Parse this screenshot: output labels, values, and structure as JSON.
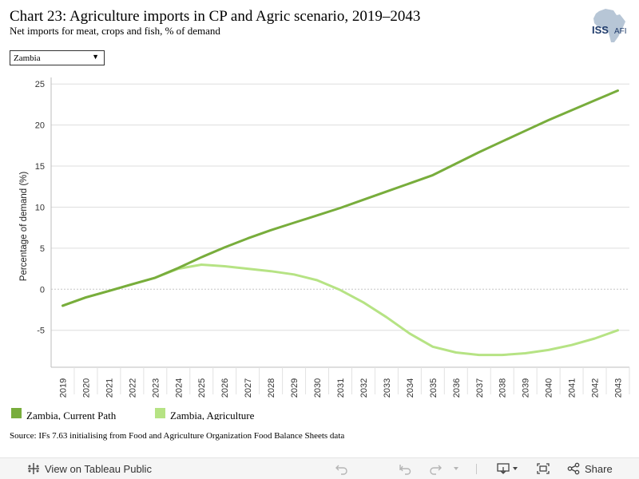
{
  "header": {
    "title": "Chart 23: Agriculture imports in CP and Agric scenario, 2019–2043",
    "subtitle": "Net imports for meat, crops and fish, % of demand"
  },
  "logo": {
    "text": "ISS",
    "suffix": "AFI",
    "icon": "africa-map-icon"
  },
  "filter": {
    "selected": "Zambia",
    "icon": "dropdown-arrow-icon"
  },
  "chart_data": {
    "type": "line",
    "ylabel": "Percentage of demand (%)",
    "xlabel": "",
    "ylim": [
      -9.5,
      25.8
    ],
    "yticks": [
      25,
      20,
      15,
      10,
      5,
      0,
      -5
    ],
    "ytick_labels": [
      "25",
      "20",
      "15",
      "10",
      "5",
      "0",
      "-5"
    ],
    "grid": true,
    "x": [
      "2019",
      "2020",
      "2021",
      "2022",
      "2023",
      "2024",
      "2025",
      "2026",
      "2027",
      "2028",
      "2029",
      "2030",
      "2031",
      "2032",
      "2033",
      "2034",
      "2035",
      "2036",
      "2037",
      "2038",
      "2039",
      "2040",
      "2041",
      "2042",
      "2043"
    ],
    "series": [
      {
        "name": "Zambia, Current Path",
        "color": "#78ad3c",
        "values": [
          -2.0,
          -1.0,
          -0.2,
          0.6,
          1.4,
          2.6,
          3.9,
          5.1,
          6.2,
          7.2,
          8.1,
          9.0,
          9.9,
          10.9,
          11.9,
          12.9,
          13.9,
          15.3,
          16.7,
          18.0,
          19.3,
          20.6,
          21.8,
          23.0,
          24.2
        ]
      },
      {
        "name": "Zambia, Agriculture",
        "color": "#b6e384",
        "values": [
          -2.0,
          -1.0,
          -0.2,
          0.6,
          1.4,
          2.5,
          3.0,
          2.8,
          2.5,
          2.2,
          1.8,
          1.1,
          -0.1,
          -1.6,
          -3.4,
          -5.4,
          -7.0,
          -7.7,
          -8.0,
          -8.0,
          -7.8,
          -7.4,
          -6.8,
          -6.0,
          -5.0
        ]
      }
    ],
    "legend_position": "bottom-left"
  },
  "source": "Source: IFs 7.63 initialising from Food and Agriculture Organization Food Balance Sheets data",
  "toolbar": {
    "view_label": "View on Tableau Public",
    "share_label": "Share",
    "icons": [
      "tableau-icon",
      "undo-icon",
      "redo-icon",
      "revert-icon",
      "refresh-icon",
      "download-icon",
      "fullscreen-icon",
      "share-icon"
    ]
  }
}
